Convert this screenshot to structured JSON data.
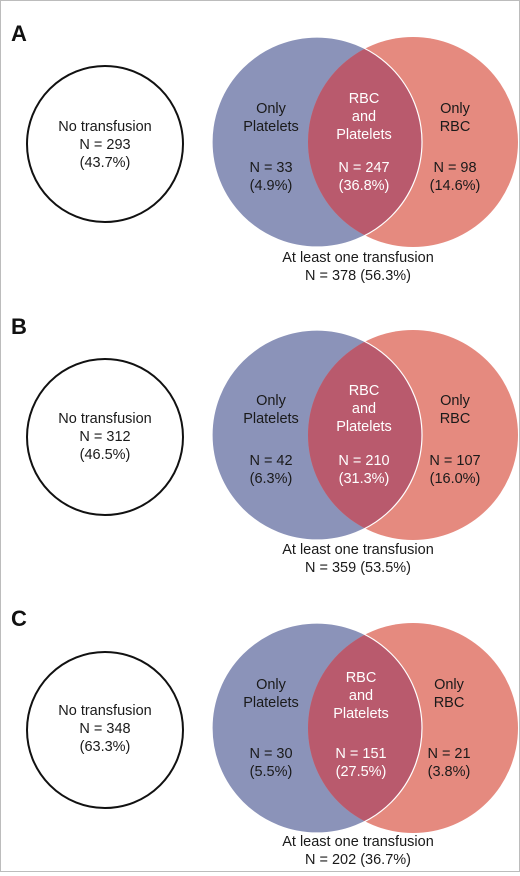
{
  "colors": {
    "platelets": "#8b93b9",
    "rbc": "#e58a7f",
    "overlap": "#b95a6d",
    "outline": "#111111"
  },
  "panels": [
    {
      "letter": "A",
      "none": {
        "title": "No transfusion",
        "n": "N = 293",
        "pct": "(43.7%)"
      },
      "platelets": {
        "line1": "Only",
        "line2": "Platelets",
        "n": "N = 33",
        "pct": "(4.9%)"
      },
      "both": {
        "line1": "RBC",
        "line2": "and",
        "line3": "Platelets",
        "n": "N = 247",
        "pct": "(36.8%)"
      },
      "rbc": {
        "line1": "Only",
        "line2": "RBC",
        "n": "N = 98",
        "pct": "(14.6%)"
      },
      "any": {
        "title": "At least one transfusion",
        "n": "N = 378 (56.3%)"
      }
    },
    {
      "letter": "B",
      "none": {
        "title": "No transfusion",
        "n": "N = 312",
        "pct": "(46.5%)"
      },
      "platelets": {
        "line1": "Only",
        "line2": "Platelets",
        "n": "N = 42",
        "pct": "(6.3%)"
      },
      "both": {
        "line1": "RBC",
        "line2": "and",
        "line3": "Platelets",
        "n": "N = 210",
        "pct": "(31.3%)"
      },
      "rbc": {
        "line1": "Only",
        "line2": "RBC",
        "n": "N = 107",
        "pct": "(16.0%)"
      },
      "any": {
        "title": "At least one transfusion",
        "n": "N = 359 (53.5%)"
      }
    },
    {
      "letter": "C",
      "none": {
        "title": "No transfusion",
        "n": "N = 348",
        "pct": "(63.3%)"
      },
      "platelets": {
        "line1": "Only",
        "line2": "Platelets",
        "n": "N = 30",
        "pct": "(5.5%)"
      },
      "both": {
        "line1": "RBC",
        "line2": "and",
        "line3": "Platelets",
        "n": "N = 151",
        "pct": "(27.5%)"
      },
      "rbc": {
        "line1": "Only",
        "line2": "RBC",
        "n": "N = 21",
        "pct": "(3.8%)"
      },
      "any": {
        "title": "At least one transfusion",
        "n": "N = 202 (36.7%)"
      }
    }
  ]
}
